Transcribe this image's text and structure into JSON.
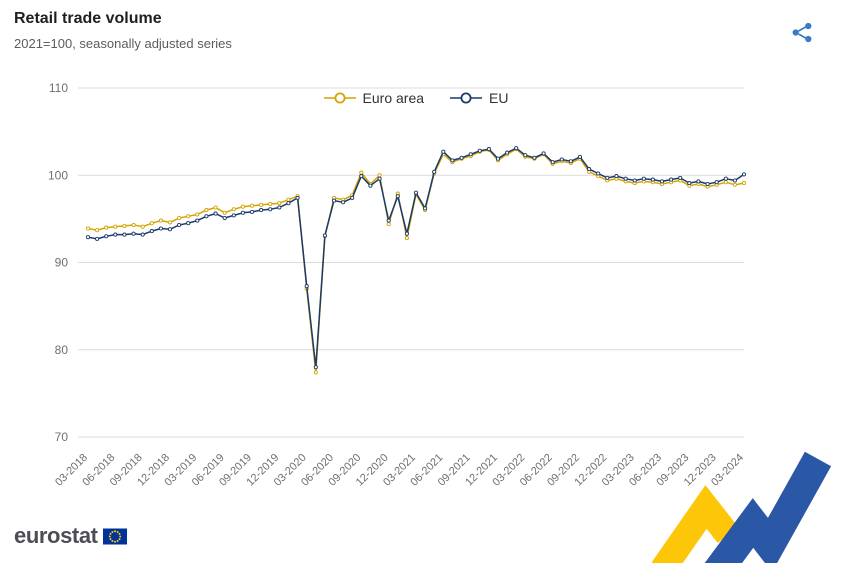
{
  "header": {
    "title": "Retail trade volume",
    "subtitle": "2021=100, seasonally adjusted series",
    "share_icon": "share-alt-icon"
  },
  "footer": {
    "brand": "eurostat",
    "flag_icon": "eu-flag-icon",
    "deco_icon": "yellow-blue-ribbon"
  },
  "colors": {
    "euro_area": "#D6A400",
    "eu": "#1A3A6B",
    "grid": "#dcdcdc",
    "axis_text": "#6f6f6f",
    "share_icon": "#3a7bc8",
    "flag_blue": "#003399",
    "star_yellow": "#FFCC00",
    "ribbon_yellow": "#FDC608",
    "ribbon_blue": "#2B57A7"
  },
  "chart_data": {
    "type": "line",
    "title": "Retail trade volume",
    "subtitle": "2021=100, seasonally adjusted series",
    "grid": true,
    "legend_position": "top-center",
    "ylim": [
      70,
      110
    ],
    "yticks": [
      70,
      80,
      90,
      100,
      110
    ],
    "x_tick_every": 3,
    "x": [
      "03-2018",
      "04-2018",
      "05-2018",
      "06-2018",
      "07-2018",
      "08-2018",
      "09-2018",
      "10-2018",
      "11-2018",
      "12-2018",
      "01-2019",
      "02-2019",
      "03-2019",
      "04-2019",
      "05-2019",
      "06-2019",
      "07-2019",
      "08-2019",
      "09-2019",
      "10-2019",
      "11-2019",
      "12-2019",
      "01-2020",
      "02-2020",
      "03-2020",
      "04-2020",
      "05-2020",
      "06-2020",
      "07-2020",
      "08-2020",
      "09-2020",
      "10-2020",
      "11-2020",
      "12-2020",
      "01-2021",
      "02-2021",
      "03-2021",
      "04-2021",
      "05-2021",
      "06-2021",
      "07-2021",
      "08-2021",
      "09-2021",
      "10-2021",
      "11-2021",
      "12-2021",
      "01-2022",
      "02-2022",
      "03-2022",
      "04-2022",
      "05-2022",
      "06-2022",
      "07-2022",
      "08-2022",
      "09-2022",
      "10-2022",
      "11-2022",
      "12-2022",
      "01-2023",
      "02-2023",
      "03-2023",
      "04-2023",
      "05-2023",
      "06-2023",
      "07-2023",
      "08-2023",
      "09-2023",
      "10-2023",
      "11-2023",
      "12-2023",
      "01-2024",
      "02-2024",
      "03-2024"
    ],
    "series": [
      {
        "name": "Euro area",
        "color": "#D6A400",
        "values": [
          93.9,
          93.7,
          94,
          94.1,
          94.2,
          94.3,
          94.1,
          94.5,
          94.8,
          94.6,
          95.1,
          95.3,
          95.5,
          96,
          96.3,
          95.7,
          96.1,
          96.4,
          96.5,
          96.6,
          96.7,
          96.8,
          97.2,
          97.6,
          87,
          77.4,
          93,
          97.4,
          97.2,
          97.7,
          100.3,
          99,
          100,
          94.4,
          97.9,
          92.8,
          97.8,
          96,
          100.2,
          102.4,
          101.5,
          101.9,
          102.2,
          102.7,
          102.9,
          101.7,
          102.4,
          103,
          102.1,
          101.9,
          102.4,
          101.3,
          101.6,
          101.4,
          101.9,
          100.4,
          99.9,
          99.4,
          99.6,
          99.3,
          99.1,
          99.3,
          99.2,
          99,
          99.2,
          99.4,
          98.8,
          99,
          98.7,
          98.9,
          99.2,
          98.9,
          99.1
        ]
      },
      {
        "name": "EU",
        "color": "#1A3A6B",
        "values": [
          92.9,
          92.7,
          93,
          93.2,
          93.2,
          93.3,
          93.2,
          93.6,
          93.9,
          93.8,
          94.3,
          94.5,
          94.8,
          95.3,
          95.6,
          95.1,
          95.4,
          95.7,
          95.8,
          96,
          96.1,
          96.3,
          96.8,
          97.4,
          87.3,
          78,
          93.1,
          97.1,
          96.9,
          97.4,
          99.9,
          98.8,
          99.6,
          94.8,
          97.6,
          93.3,
          98,
          96.2,
          100.4,
          102.7,
          101.7,
          102,
          102.4,
          102.8,
          103,
          101.9,
          102.6,
          103.1,
          102.3,
          102,
          102.5,
          101.5,
          101.8,
          101.6,
          102.1,
          100.7,
          100.2,
          99.7,
          99.9,
          99.6,
          99.4,
          99.6,
          99.5,
          99.3,
          99.5,
          99.7,
          99.1,
          99.3,
          99,
          99.2,
          99.6,
          99.4,
          100.1
        ]
      }
    ]
  }
}
